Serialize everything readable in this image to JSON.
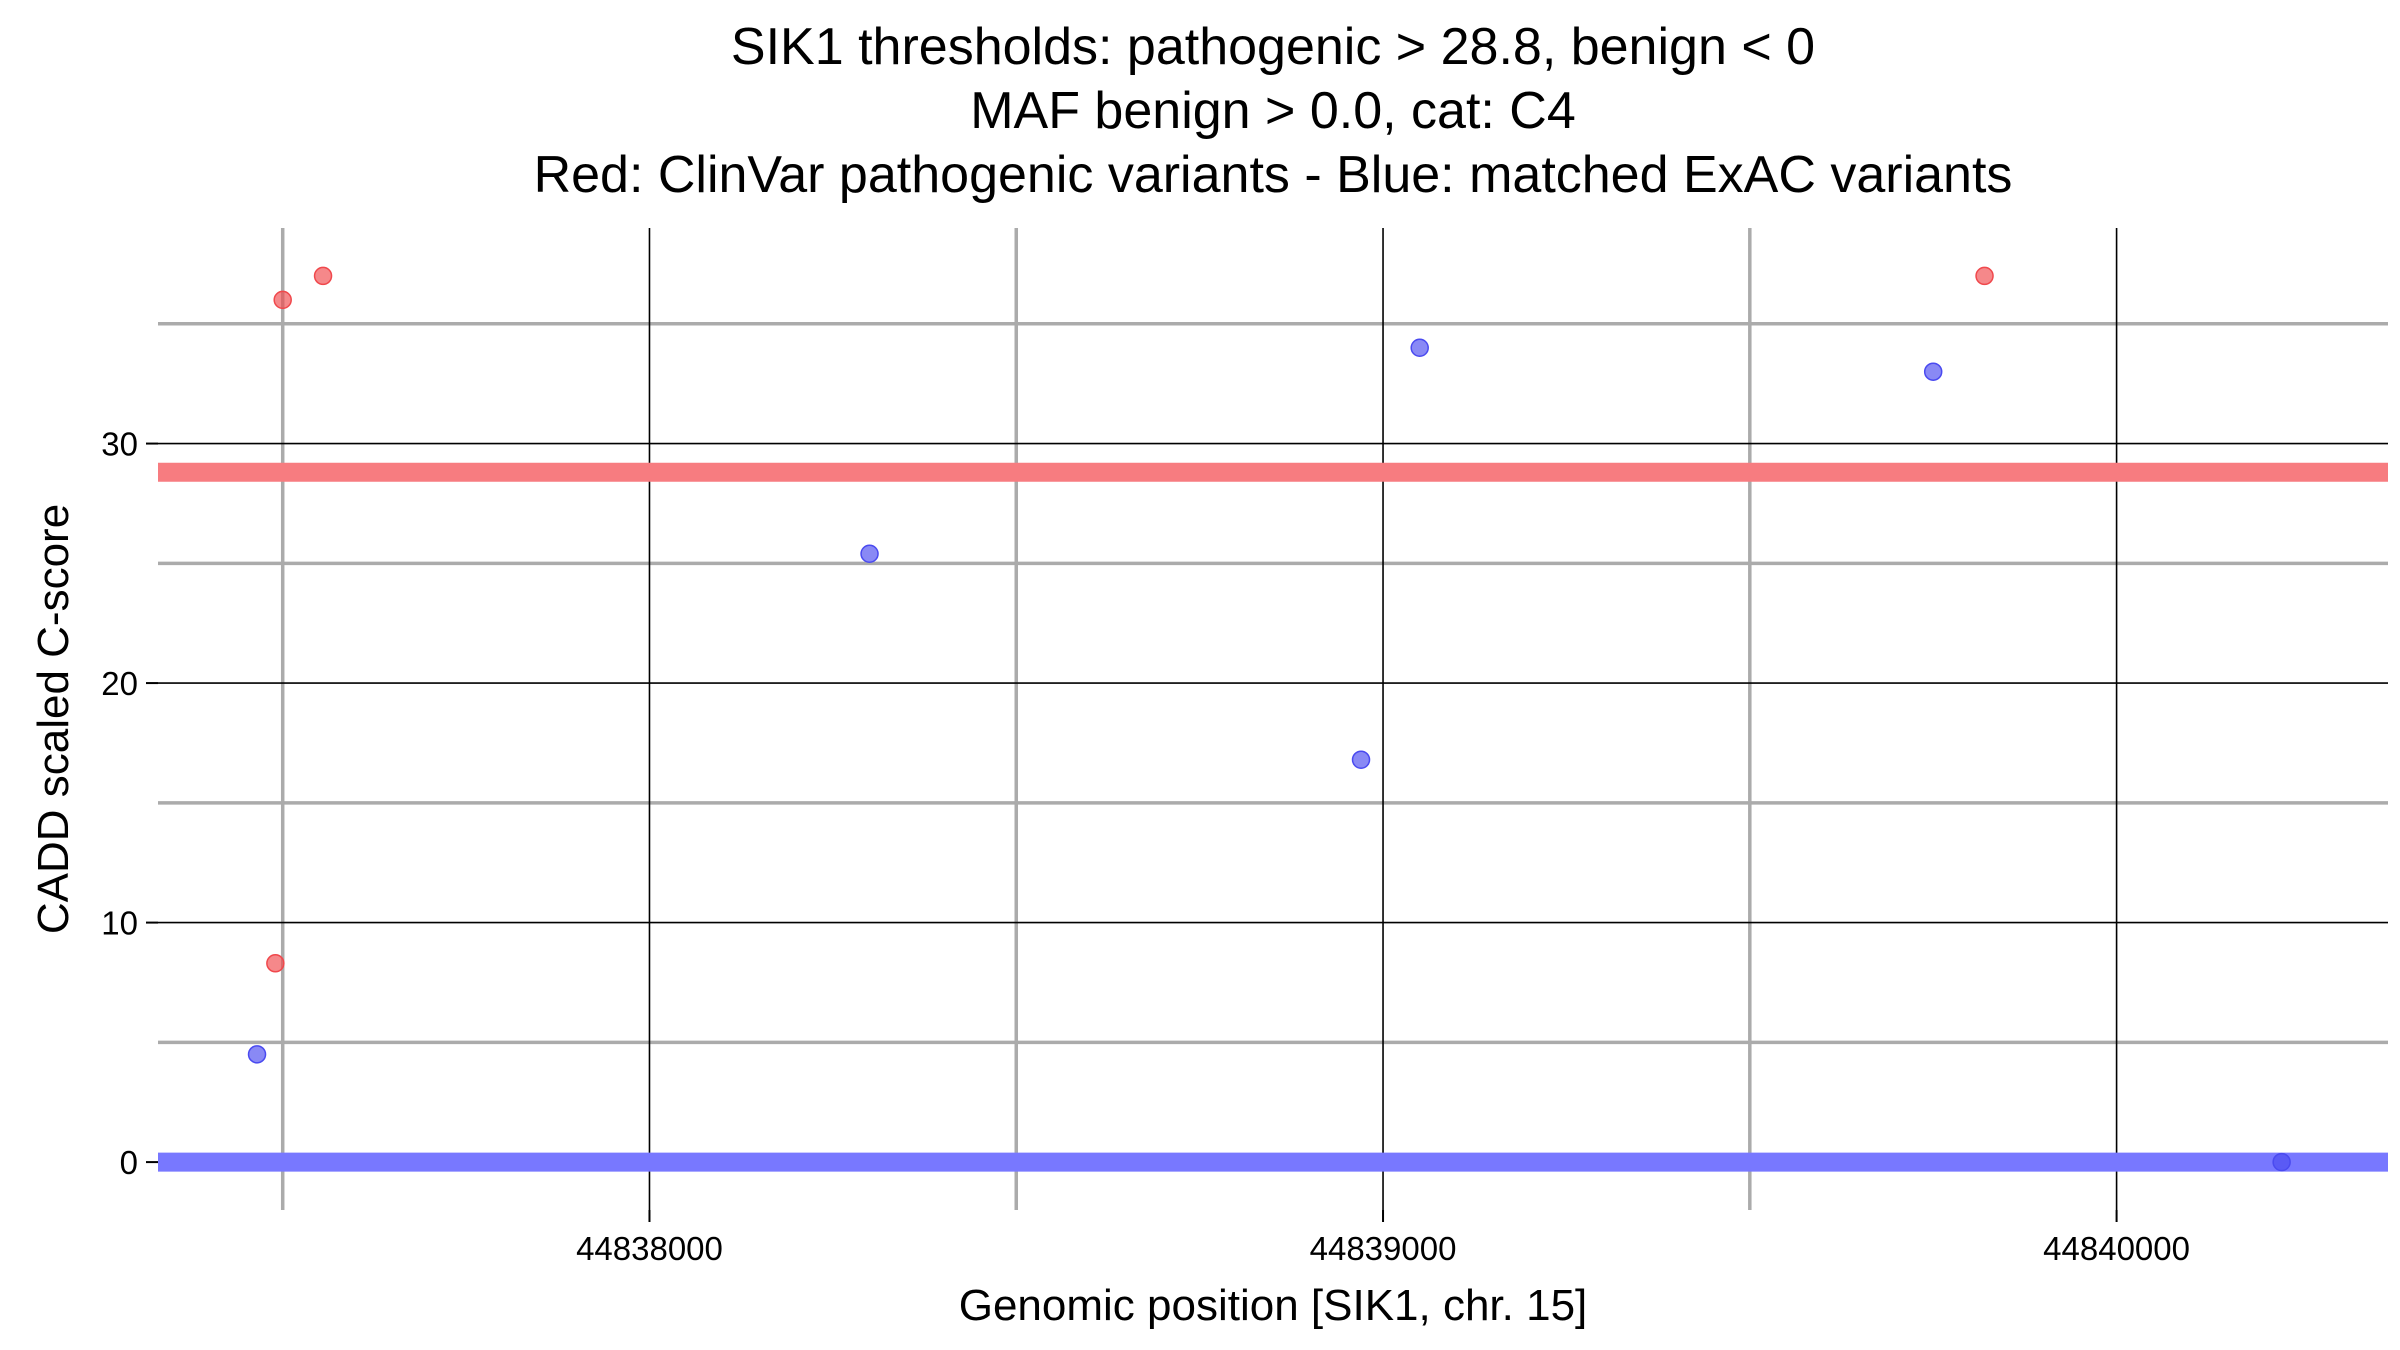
{
  "chart_data": {
    "type": "scatter",
    "title_lines": [
      "SIK1 thresholds: pathogenic > 28.8, benign < 0",
      "MAF benign > 0.0, cat: C4",
      "Red: ClinVar pathogenic variants - Blue: matched ExAC variants"
    ],
    "xlabel": "Genomic position [SIK1, chr. 15]",
    "ylabel": "CADD scaled C-score",
    "xlim": [
      44837330,
      44840370
    ],
    "ylim": [
      -2,
      39
    ],
    "x_major_ticks": [
      44838000,
      44839000,
      44840000
    ],
    "x_minor_ticks": [
      44837500,
      44838500,
      44839500
    ],
    "y_major_ticks": [
      0,
      10,
      20,
      30
    ],
    "y_minor_ticks": [
      5,
      15,
      25,
      35
    ],
    "grid": true,
    "thresholds": [
      {
        "label": "pathogenic",
        "value": 28.8,
        "color": "#f77c80"
      },
      {
        "label": "benign",
        "value": 0,
        "color": "#7878ff"
      }
    ],
    "series": [
      {
        "color": "#f0484c",
        "points": [
          {
            "x": 44837500,
            "y": 36.0
          },
          {
            "x": 44837555,
            "y": 37.0
          },
          {
            "x": 44837490,
            "y": 8.3
          },
          {
            "x": 44839820,
            "y": 37.0
          }
        ]
      },
      {
        "color": "#4a4af0",
        "points": [
          {
            "x": 44837465,
            "y": 4.5
          },
          {
            "x": 44838300,
            "y": 25.4
          },
          {
            "x": 44838970,
            "y": 16.8
          },
          {
            "x": 44839050,
            "y": 34.0
          },
          {
            "x": 44839750,
            "y": 33.0
          },
          {
            "x": 44840225,
            "y": 0.0
          }
        ]
      }
    ]
  }
}
